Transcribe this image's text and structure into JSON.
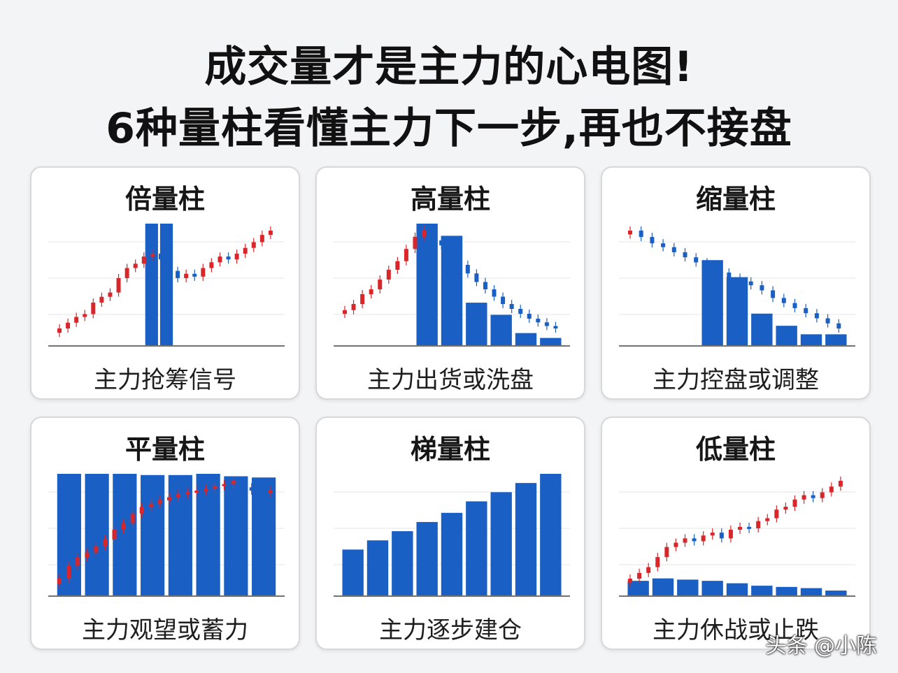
{
  "headline": {
    "line1": "成交量才是主力的心电图!",
    "line2": "6种量柱看懂主力下一步,再也不接盘"
  },
  "watermark": "头条 @小陈",
  "colors": {
    "bar": "#1a5fc4",
    "up": "#d9262b",
    "down": "#1a5fc4",
    "grid": "#e6e6e6",
    "axis": "#444444"
  },
  "chart_data": [
    {
      "type": "bar",
      "title": "倍量柱",
      "caption": "主力抢筹信号",
      "volume_bars": [
        0,
        0,
        0,
        0,
        0,
        0,
        100,
        100,
        0,
        0,
        0,
        0,
        0,
        0,
        0
      ],
      "price_closes": [
        20,
        24,
        28,
        30,
        38,
        42,
        45,
        55,
        62,
        65,
        70,
        72,
        68,
        60,
        55,
        58,
        56,
        62,
        66,
        70,
        68,
        72,
        76,
        80,
        85,
        88
      ]
    },
    {
      "type": "bar",
      "title": "高量柱",
      "caption": "主力出货或洗盘",
      "volume_bars": [
        0,
        0,
        0,
        100,
        90,
        35,
        25,
        10,
        6
      ],
      "price_closes": [
        25,
        30,
        38,
        42,
        50,
        58,
        65,
        75,
        85,
        90,
        82,
        78,
        70,
        62,
        55,
        48,
        42,
        36,
        30,
        26,
        22,
        18,
        15,
        12,
        10
      ]
    },
    {
      "type": "bar",
      "title": "缩量柱",
      "caption": "主力控盘或调整",
      "volume_bars": [
        0,
        0,
        0,
        70,
        56,
        26,
        16,
        9,
        9
      ],
      "price_closes": [
        95,
        90,
        85,
        82,
        78,
        74,
        70,
        68,
        62,
        58,
        55,
        52,
        48,
        42,
        38,
        34,
        30,
        26,
        22,
        18
      ]
    },
    {
      "type": "bar",
      "title": "平量柱",
      "caption": "主力观望或蓄力",
      "volume_bars": [
        100,
        100,
        100,
        99,
        99,
        100,
        98,
        97
      ],
      "price_closes": [
        22,
        30,
        35,
        38,
        42,
        46,
        52,
        56,
        62,
        66,
        68,
        70,
        72,
        74,
        75,
        76,
        77,
        79,
        80,
        82,
        78,
        76,
        75,
        76
      ]
    },
    {
      "type": "bar",
      "title": "梯量柱",
      "caption": "主力逐步建仓",
      "volume_bars": [
        40,
        48,
        56,
        64,
        72,
        82,
        90,
        98,
        106
      ]
    },
    {
      "type": "bar",
      "title": "低量柱",
      "caption": "主力休战或止跌",
      "volume_bars": [
        12,
        14,
        13,
        12,
        10,
        8,
        7,
        6,
        4
      ],
      "price_closes": [
        30,
        34,
        38,
        45,
        52,
        55,
        58,
        56,
        60,
        62,
        58,
        64,
        66,
        65,
        70,
        72,
        78,
        80,
        85,
        88,
        86,
        90,
        94,
        98
      ]
    }
  ]
}
